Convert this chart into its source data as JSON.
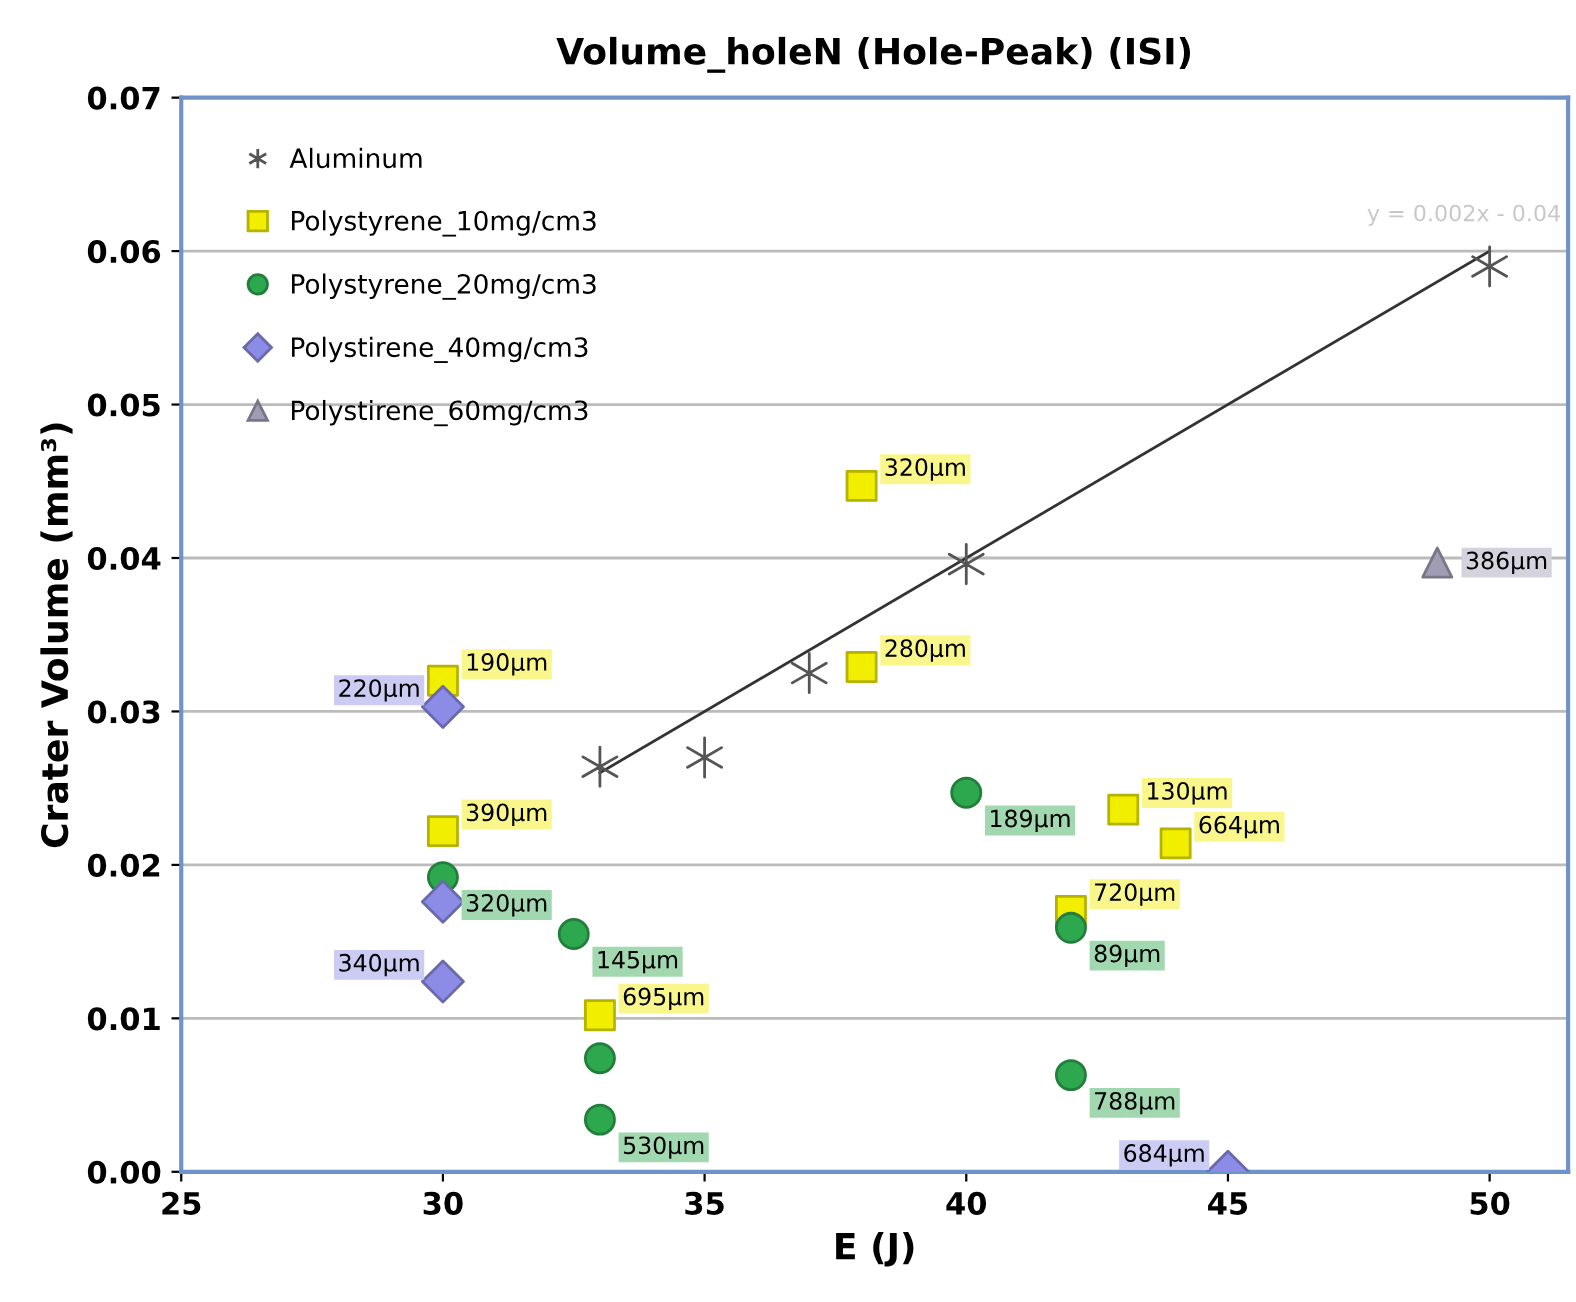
{
  "chart_data": {
    "type": "scatter",
    "title": "Volume_holeN (Hole-Peak) (ISI)",
    "xlabel": "E (J)",
    "ylabel": "Crater Volume (mm³)",
    "xlim": [
      25,
      51.5
    ],
    "xticks": [
      25,
      30,
      35,
      40,
      45,
      50
    ],
    "ylim": [
      0,
      0.07
    ],
    "yticks": [
      {
        "value": 0,
        "label": "0.00"
      },
      {
        "value": 0.01,
        "label": "0.01"
      },
      {
        "value": 0.02,
        "label": "0.02"
      },
      {
        "value": 0.03,
        "label": "0.03"
      },
      {
        "value": 0.04,
        "label": "0.04"
      },
      {
        "value": 0.05,
        "label": "0.05"
      },
      {
        "value": 0.06,
        "label": "0.06"
      },
      {
        "value": 0.07,
        "label": "0.07"
      }
    ],
    "grid": "y",
    "legend": "top left",
    "annotations": [
      "y = 0.002x - 0.04",
      {
        "text": "190µm",
        "x": 30,
        "y": 0.032
      },
      {
        "text": "390µm",
        "x": 30,
        "y": 0.0222
      },
      {
        "text": "695µm",
        "x": 33,
        "y": 0.0102
      },
      {
        "text": "320µm",
        "x": 38,
        "y": 0.0447
      },
      {
        "text": "280µm",
        "x": 38,
        "y": 0.0329
      },
      {
        "text": "720µm",
        "x": 42,
        "y": 0.017
      },
      {
        "text": "130µm",
        "x": 43,
        "y": 0.0236
      },
      {
        "text": "664µm",
        "x": 44,
        "y": 0.0214
      },
      {
        "text": "320µm",
        "x": 30,
        "y": 0.0192
      },
      {
        "text": "145µm",
        "x": 32.5,
        "y": 0.0155
      },
      {
        "text": "530µm",
        "x": 33,
        "y": 0.0034
      },
      {
        "text": "189µm",
        "x": 40,
        "y": 0.0247
      },
      {
        "text": "89µm",
        "x": 42,
        "y": 0.0159
      },
      {
        "text": "788µm",
        "x": 42,
        "y": 0.0063
      },
      {
        "text": "220µm",
        "x": 30,
        "y": 0.0303
      },
      {
        "text": "340µm",
        "x": 30,
        "y": 0.0124
      },
      {
        "text": "684µm",
        "x": 45,
        "y": 0.0
      },
      {
        "text": "386µm",
        "x": 49,
        "y": 0.0397
      }
    ],
    "series": [
      {
        "name": "Aluminum",
        "marker": "cross",
        "color": "#555555",
        "x": [
          33,
          35,
          37,
          40,
          50
        ],
        "values": [
          0.0264,
          0.027,
          0.0325,
          0.0396,
          0.059
        ]
      },
      {
        "name": "Polystyrene_10mg/cm3",
        "marker": "square",
        "color": "#f2ee00",
        "x": [
          30,
          30,
          33,
          38,
          38,
          42,
          43,
          44
        ],
        "values": [
          0.032,
          0.0222,
          0.0102,
          0.0447,
          0.0329,
          0.017,
          0.0236,
          0.0214
        ]
      },
      {
        "name": "Polystyrene_20mg/cm3",
        "marker": "circle",
        "color": "#2ea84e",
        "x": [
          30,
          32.5,
          33,
          33,
          40,
          42,
          42
        ],
        "values": [
          0.0192,
          0.0155,
          0.0074,
          0.0034,
          0.0247,
          0.0159,
          0.0063
        ]
      },
      {
        "name": "Polystirene_40mg/cm3",
        "marker": "diamond",
        "color": "#8c8ce6",
        "x": [
          30,
          30,
          30,
          45
        ],
        "values": [
          0.0303,
          0.0176,
          0.0124,
          0.0
        ]
      },
      {
        "name": "Polystirene_60mg/cm3",
        "marker": "triangle",
        "color": "#a09cb4",
        "x": [
          49
        ],
        "values": [
          0.0397
        ]
      },
      {
        "type": "line",
        "color": "#333333",
        "x": [
          33,
          50
        ],
        "values": [
          0.026,
          0.06
        ]
      }
    ]
  }
}
